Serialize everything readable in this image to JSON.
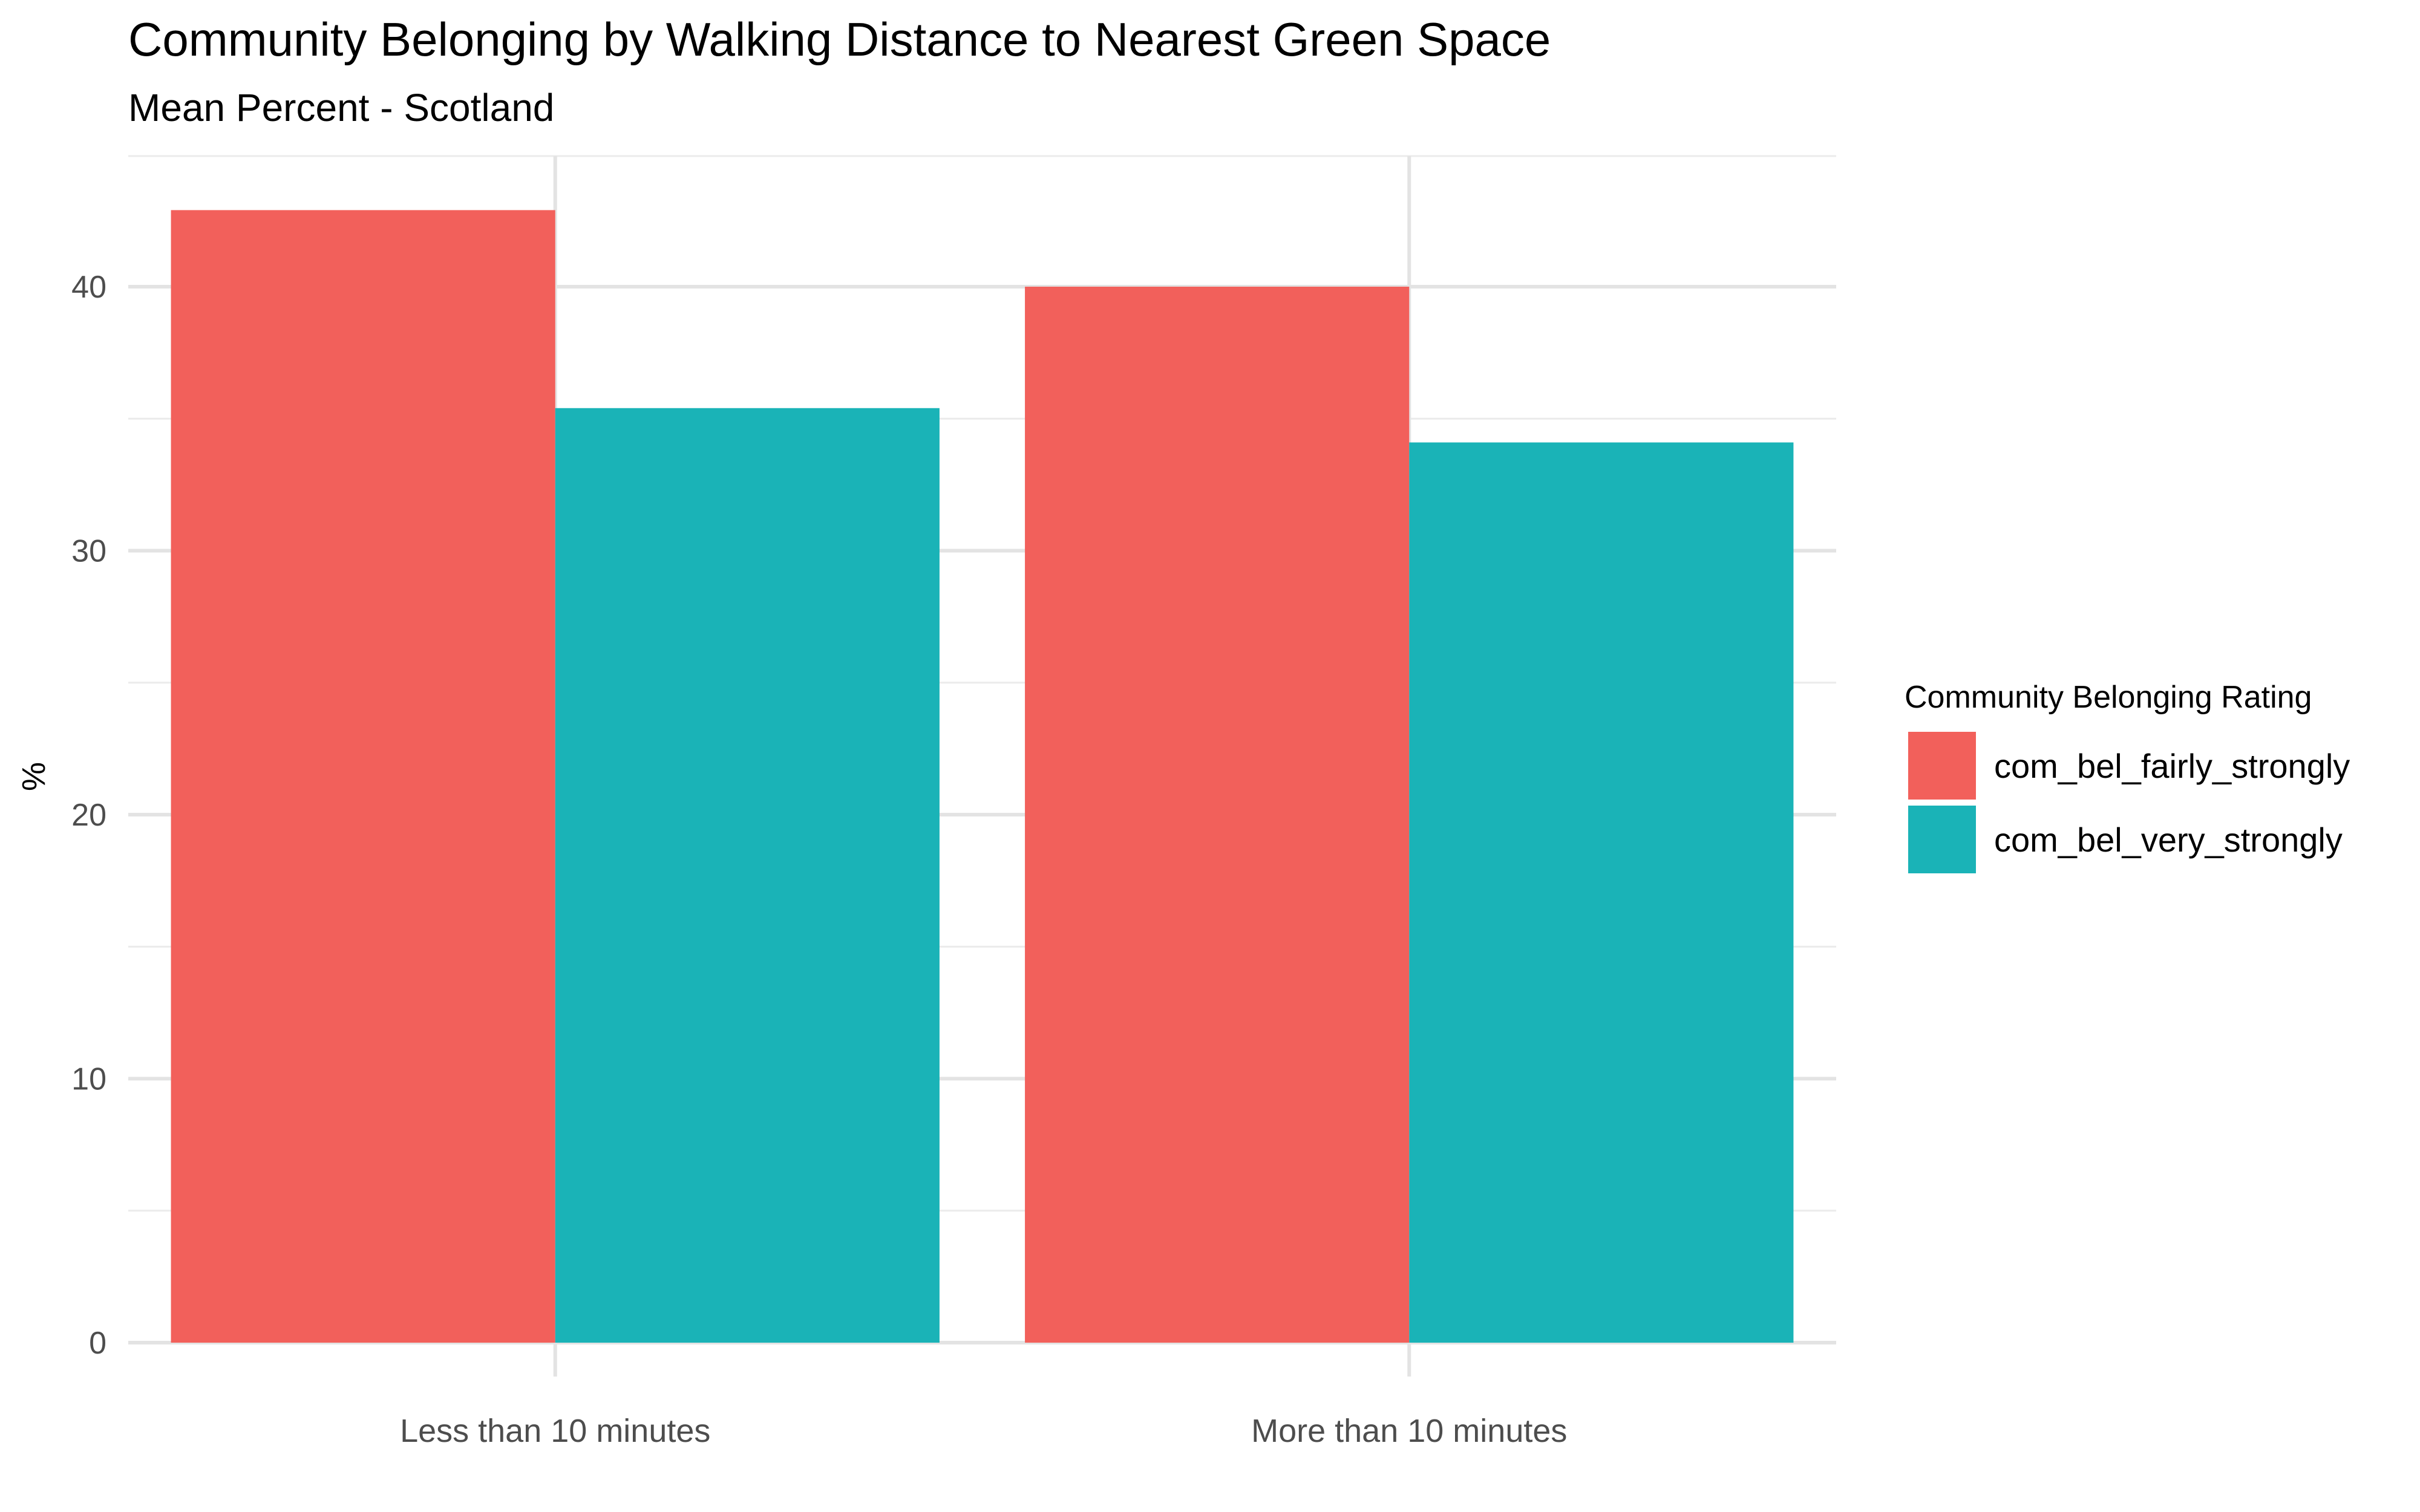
{
  "chart_data": {
    "type": "bar",
    "title": "Community Belonging by Walking Distance to Nearest Green Space",
    "subtitle": "Mean Percent - Scotland",
    "xlabel": "",
    "ylabel": "%",
    "categories": [
      "Less than 10 minutes",
      "More than 10 minutes"
    ],
    "series": [
      {
        "name": "com_bel_fairly_strongly",
        "values": [
          42.9,
          40.0
        ],
        "color": "#F2605B"
      },
      {
        "name": "com_bel_very_strongly",
        "values": [
          35.4,
          34.1
        ],
        "color": "#1AB3B7"
      }
    ],
    "ylim": [
      0,
      45
    ],
    "yticks": [
      0,
      10,
      20,
      30,
      40
    ],
    "grid": true,
    "legend": {
      "title": "Community Belonging Rating",
      "placement": "right"
    }
  }
}
